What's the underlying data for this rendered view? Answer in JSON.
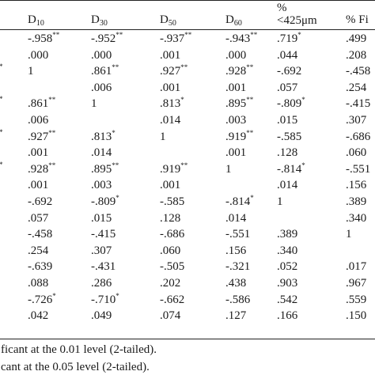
{
  "header": {
    "columns": [
      {
        "base": "D",
        "sub": "10"
      },
      {
        "base": "D",
        "sub": "30"
      },
      {
        "base": "D",
        "sub": "50"
      },
      {
        "base": "D",
        "sub": "60"
      },
      {
        "line1": "%",
        "line2": "<425μm"
      },
      {
        "base": "% Fi"
      }
    ]
  },
  "rows": [
    {
      "c": [
        {
          "t": "-.958",
          "s": "**"
        },
        {
          "t": "-.952",
          "s": "**"
        },
        {
          "t": "-.937",
          "s": "**"
        },
        {
          "t": "-.943",
          "s": "**"
        },
        {
          "t": ".719",
          "s": "*"
        },
        {
          "t": ".499",
          "s": ""
        }
      ]
    },
    {
      "c": [
        {
          "t": ".000",
          "s": ""
        },
        {
          "t": ".000",
          "s": ""
        },
        {
          "t": ".001",
          "s": ""
        },
        {
          "t": ".000",
          "s": ""
        },
        {
          "t": ".044",
          "s": ""
        },
        {
          "t": ".208",
          "s": ""
        }
      ]
    },
    {
      "lead": "*",
      "c": [
        {
          "t": "1",
          "s": ""
        },
        {
          "t": ".861",
          "s": "**"
        },
        {
          "t": ".927",
          "s": "**"
        },
        {
          "t": ".928",
          "s": "**"
        },
        {
          "t": "-.692",
          "s": ""
        },
        {
          "t": "-.458",
          "s": ""
        }
      ]
    },
    {
      "c": [
        {
          "t": "",
          "s": ""
        },
        {
          "t": ".006",
          "s": ""
        },
        {
          "t": ".001",
          "s": ""
        },
        {
          "t": ".001",
          "s": ""
        },
        {
          "t": ".057",
          "s": ""
        },
        {
          "t": ".254",
          "s": ""
        }
      ]
    },
    {
      "lead": "*",
      "c": [
        {
          "t": ".861",
          "s": "**"
        },
        {
          "t": "1",
          "s": ""
        },
        {
          "t": ".813",
          "s": "*"
        },
        {
          "t": ".895",
          "s": "**"
        },
        {
          "t": "-.809",
          "s": "*"
        },
        {
          "t": "-.415",
          "s": ""
        }
      ]
    },
    {
      "c": [
        {
          "t": ".006",
          "s": ""
        },
        {
          "t": "",
          "s": ""
        },
        {
          "t": ".014",
          "s": ""
        },
        {
          "t": ".003",
          "s": ""
        },
        {
          "t": ".015",
          "s": ""
        },
        {
          "t": ".307",
          "s": ""
        }
      ]
    },
    {
      "lead": "*",
      "c": [
        {
          "t": ".927",
          "s": "**"
        },
        {
          "t": ".813",
          "s": "*"
        },
        {
          "t": "1",
          "s": ""
        },
        {
          "t": ".919",
          "s": "**"
        },
        {
          "t": "-.585",
          "s": ""
        },
        {
          "t": "-.686",
          "s": ""
        }
      ]
    },
    {
      "c": [
        {
          "t": ".001",
          "s": ""
        },
        {
          "t": ".014",
          "s": ""
        },
        {
          "t": "",
          "s": ""
        },
        {
          "t": ".001",
          "s": ""
        },
        {
          "t": ".128",
          "s": ""
        },
        {
          "t": ".060",
          "s": ""
        }
      ]
    },
    {
      "lead": "*",
      "c": [
        {
          "t": ".928",
          "s": "**"
        },
        {
          "t": ".895",
          "s": "**"
        },
        {
          "t": ".919",
          "s": "**"
        },
        {
          "t": "1",
          "s": ""
        },
        {
          "t": "-.814",
          "s": "*"
        },
        {
          "t": "-.551",
          "s": ""
        }
      ]
    },
    {
      "c": [
        {
          "t": ".001",
          "s": ""
        },
        {
          "t": ".003",
          "s": ""
        },
        {
          "t": ".001",
          "s": ""
        },
        {
          "t": "",
          "s": ""
        },
        {
          "t": ".014",
          "s": ""
        },
        {
          "t": ".156",
          "s": ""
        }
      ]
    },
    {
      "c": [
        {
          "t": "-.692",
          "s": ""
        },
        {
          "t": "-.809",
          "s": "*"
        },
        {
          "t": "-.585",
          "s": ""
        },
        {
          "t": "-.814",
          "s": "*"
        },
        {
          "t": "1",
          "s": ""
        },
        {
          "t": ".389",
          "s": ""
        }
      ]
    },
    {
      "c": [
        {
          "t": ".057",
          "s": ""
        },
        {
          "t": ".015",
          "s": ""
        },
        {
          "t": ".128",
          "s": ""
        },
        {
          "t": ".014",
          "s": ""
        },
        {
          "t": "",
          "s": ""
        },
        {
          "t": ".340",
          "s": ""
        }
      ]
    },
    {
      "c": [
        {
          "t": "-.458",
          "s": ""
        },
        {
          "t": "-.415",
          "s": ""
        },
        {
          "t": "-.686",
          "s": ""
        },
        {
          "t": "-.551",
          "s": ""
        },
        {
          "t": ".389",
          "s": ""
        },
        {
          "t": "1",
          "s": ""
        }
      ]
    },
    {
      "c": [
        {
          "t": ".254",
          "s": ""
        },
        {
          "t": ".307",
          "s": ""
        },
        {
          "t": ".060",
          "s": ""
        },
        {
          "t": ".156",
          "s": ""
        },
        {
          "t": ".340",
          "s": ""
        },
        {
          "t": "",
          "s": ""
        }
      ]
    },
    {
      "c": [
        {
          "t": "-.639",
          "s": ""
        },
        {
          "t": "-.431",
          "s": ""
        },
        {
          "t": "-.505",
          "s": ""
        },
        {
          "t": "-.321",
          "s": ""
        },
        {
          "t": ".052",
          "s": ""
        },
        {
          "t": ".017",
          "s": ""
        }
      ]
    },
    {
      "c": [
        {
          "t": ".088",
          "s": ""
        },
        {
          "t": ".286",
          "s": ""
        },
        {
          "t": ".202",
          "s": ""
        },
        {
          "t": ".438",
          "s": ""
        },
        {
          "t": ".903",
          "s": ""
        },
        {
          "t": ".967",
          "s": ""
        }
      ]
    },
    {
      "c": [
        {
          "t": "-.726",
          "s": "*"
        },
        {
          "t": "-.710",
          "s": "*"
        },
        {
          "t": "-.662",
          "s": ""
        },
        {
          "t": "-.586",
          "s": ""
        },
        {
          "t": ".542",
          "s": ""
        },
        {
          "t": ".559",
          "s": ""
        }
      ]
    },
    {
      "c": [
        {
          "t": ".042",
          "s": ""
        },
        {
          "t": ".049",
          "s": ""
        },
        {
          "t": ".074",
          "s": ""
        },
        {
          "t": ".127",
          "s": ""
        },
        {
          "t": ".166",
          "s": ""
        },
        {
          "t": ".150",
          "s": ""
        }
      ]
    }
  ],
  "notes": [
    "ficant at the 0.01 level (2-tailed).",
    "cant at the 0.05 level (2-tailed)."
  ]
}
